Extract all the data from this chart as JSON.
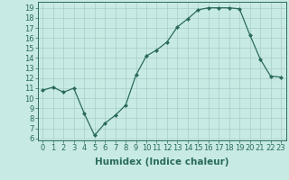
{
  "x": [
    0,
    1,
    2,
    3,
    4,
    5,
    6,
    7,
    8,
    9,
    10,
    11,
    12,
    13,
    14,
    15,
    16,
    17,
    18,
    19,
    20,
    21,
    22,
    23
  ],
  "y": [
    10.8,
    11.1,
    10.6,
    11.0,
    8.5,
    6.3,
    7.5,
    8.3,
    9.3,
    12.3,
    14.2,
    14.8,
    15.6,
    17.1,
    17.9,
    18.8,
    19.0,
    19.0,
    19.0,
    18.9,
    16.3,
    13.9,
    12.2,
    12.1
  ],
  "xlabel": "Humidex (Indice chaleur)",
  "ylim": [
    5.8,
    19.6
  ],
  "xlim": [
    -0.5,
    23.5
  ],
  "yticks": [
    6,
    7,
    8,
    9,
    10,
    11,
    12,
    13,
    14,
    15,
    16,
    17,
    18,
    19
  ],
  "xticks": [
    0,
    1,
    2,
    3,
    4,
    5,
    6,
    7,
    8,
    9,
    10,
    11,
    12,
    13,
    14,
    15,
    16,
    17,
    18,
    19,
    20,
    21,
    22,
    23
  ],
  "line_color": "#2a6b5c",
  "marker": "D",
  "marker_size": 2.0,
  "bg_color": "#c8eae4",
  "grid_color": "#a8ccc8",
  "xlabel_fontsize": 7.5,
  "tick_fontsize": 6.0,
  "linewidth": 0.9
}
